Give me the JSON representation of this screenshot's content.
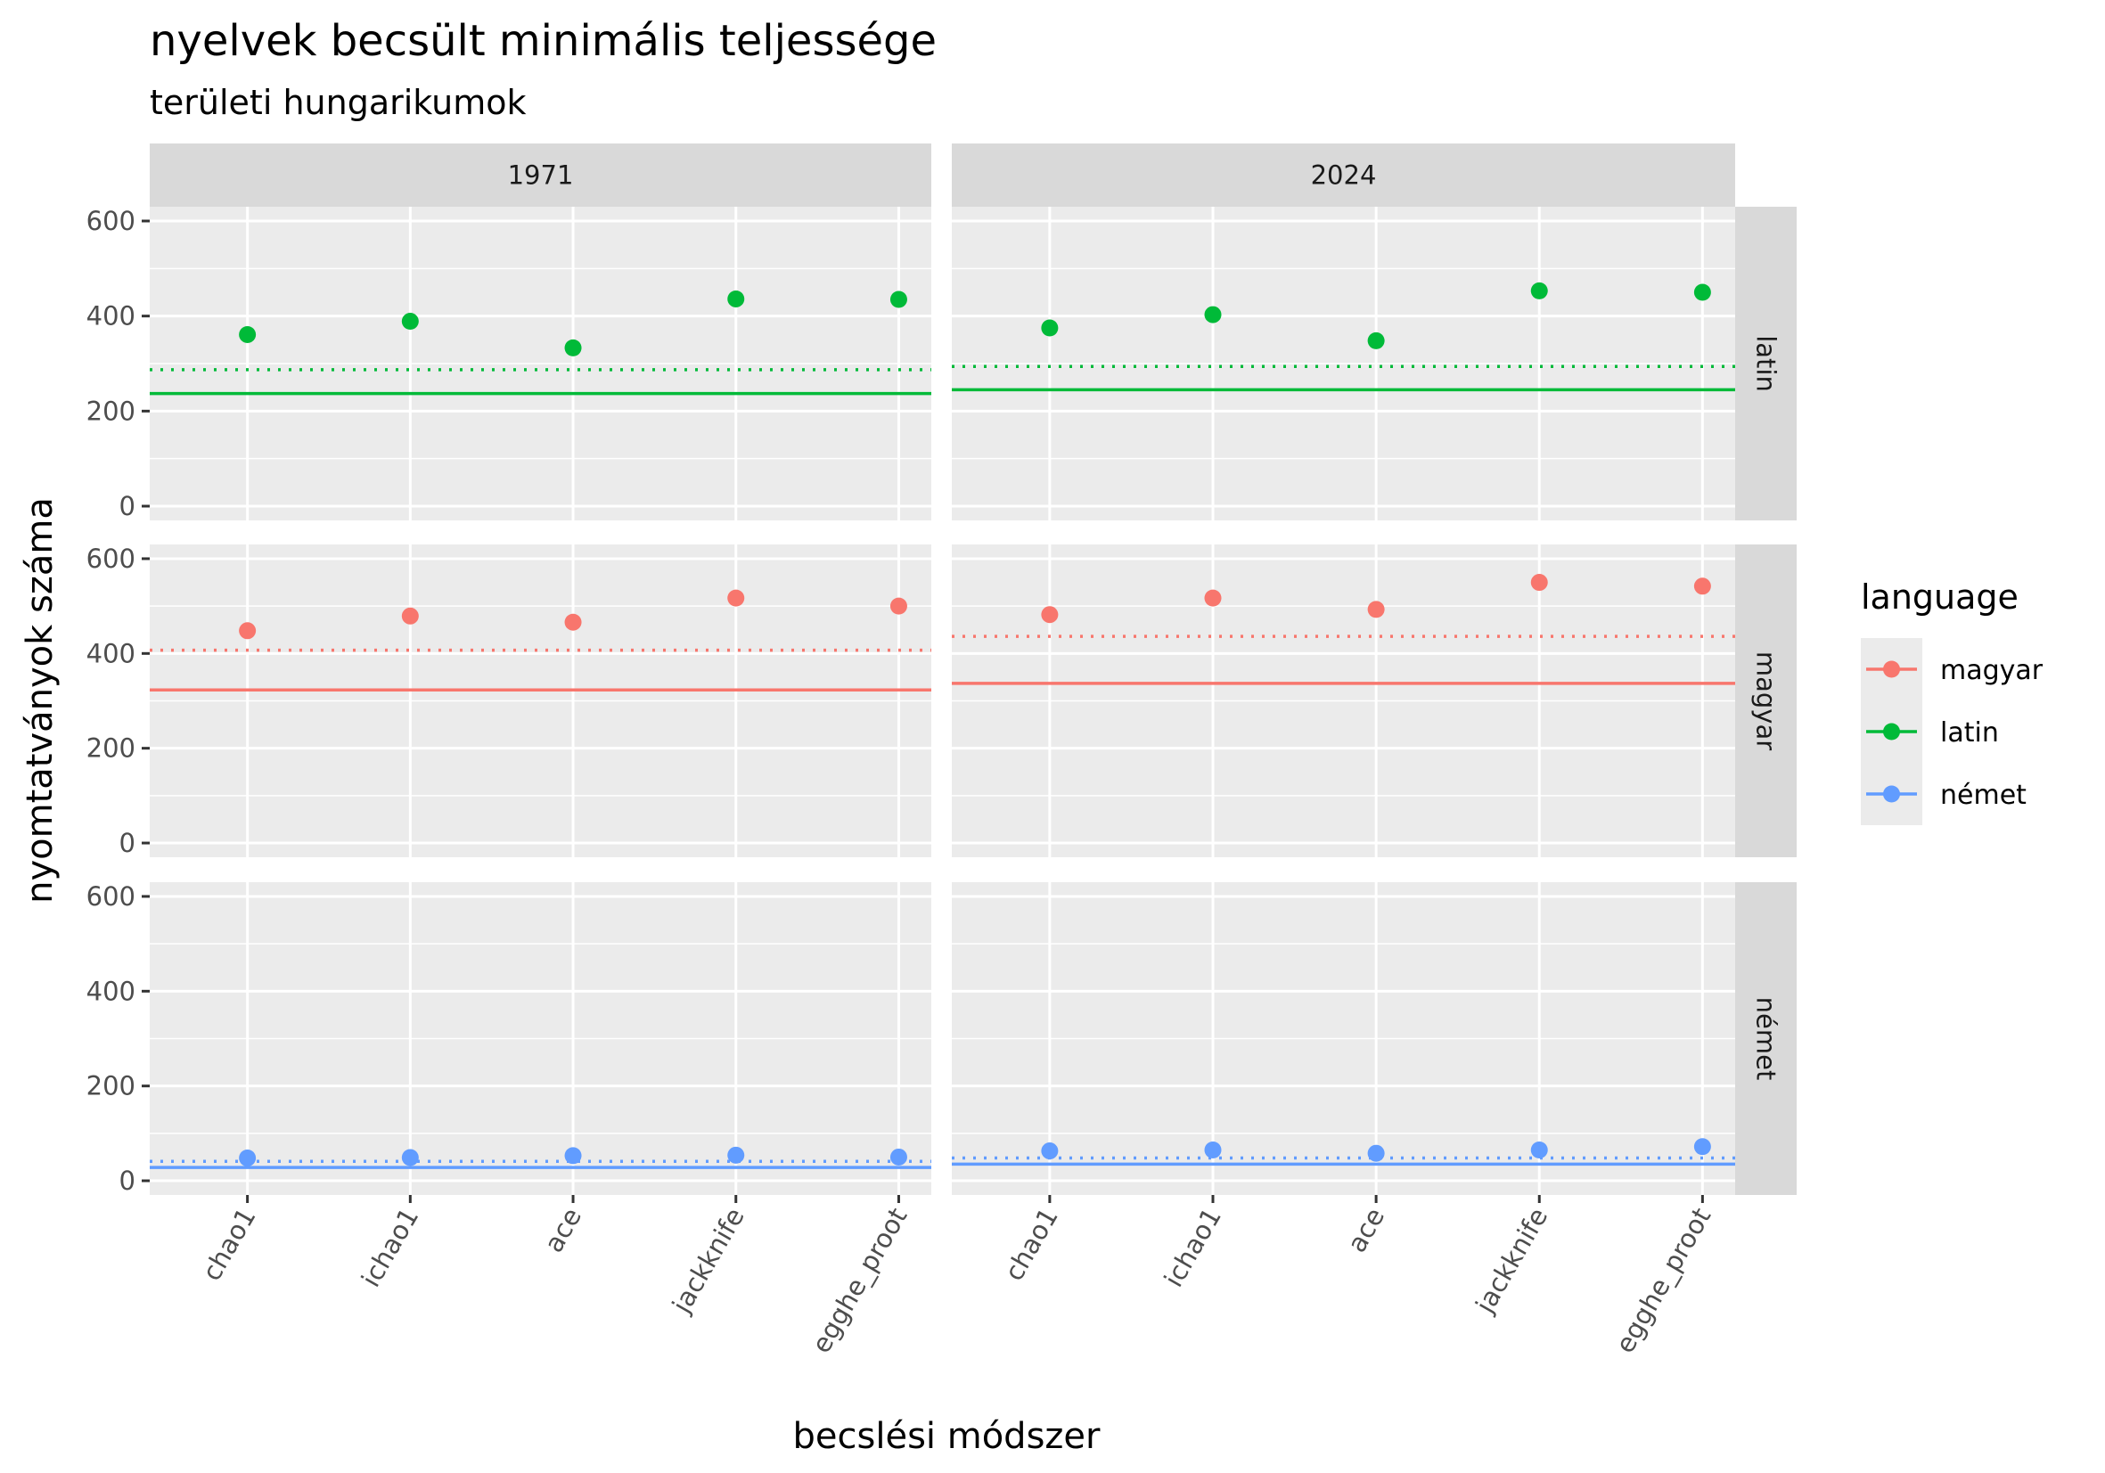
{
  "chart_data": {
    "type": "scatter",
    "title": "nyelvek becsült minimális teljessége",
    "subtitle": "területi hungarikumok",
    "xlabel": "becslési módszer",
    "ylabel": "nyomtatványok száma",
    "categories": [
      "chao1",
      "ichao1",
      "ace",
      "jackknife",
      "egghe_proot"
    ],
    "ylim": [
      -30,
      630
    ],
    "yticks": [
      "0",
      "200",
      "400",
      "600"
    ],
    "grid": true,
    "facet_columns": [
      "1971",
      "2024"
    ],
    "facet_rows": [
      "latin",
      "magyar",
      "német"
    ],
    "legend": {
      "title": "language",
      "placement": "right",
      "entries": [
        {
          "label": "magyar",
          "color": "#F8766D"
        },
        {
          "label": "latin",
          "color": "#00BA38"
        },
        {
          "label": "német",
          "color": "#619CFF"
        }
      ]
    },
    "panels": [
      {
        "year": "1971",
        "language": "latin",
        "color": "#00BA38",
        "values": [
          361,
          389,
          333,
          436,
          435
        ],
        "observed": 237,
        "dotted": 287
      },
      {
        "year": "2024",
        "language": "latin",
        "color": "#00BA38",
        "values": [
          375,
          403,
          348,
          453,
          450
        ],
        "observed": 245,
        "dotted": 294
      },
      {
        "year": "1971",
        "language": "magyar",
        "color": "#F8766D",
        "values": [
          448,
          479,
          466,
          517,
          500
        ],
        "observed": 323,
        "dotted": 407
      },
      {
        "year": "2024",
        "language": "magyar",
        "color": "#F8766D",
        "values": [
          482,
          517,
          493,
          550,
          542
        ],
        "observed": 337,
        "dotted": 436
      },
      {
        "year": "1971",
        "language": "német",
        "color": "#619CFF",
        "values": [
          48,
          49,
          53,
          54,
          50
        ],
        "observed": 28,
        "dotted": 41
      },
      {
        "year": "2024",
        "language": "német",
        "color": "#619CFF",
        "values": [
          63,
          65,
          58,
          65,
          72
        ],
        "observed": 35,
        "dotted": 48
      }
    ]
  }
}
